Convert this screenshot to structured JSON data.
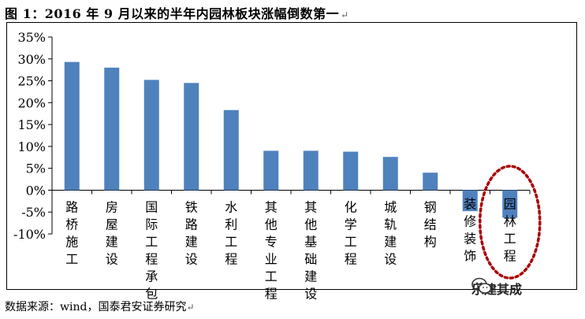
{
  "title": "图 1：2016 年 9 月以来的半年内园林板块涨幅倒数第一",
  "title_mark": "↵",
  "source": "数据来源：wind，国泰君安证券研究",
  "source_mark": "↵",
  "watermark": "乐建其成",
  "watermark_icon": "wechat-icon",
  "chart_data": {
    "type": "bar",
    "categories": [
      "路桥施工",
      "房屋建设",
      "国际工程承包",
      "铁路建设",
      "水利工程",
      "其他专业工程",
      "其他基础建设",
      "化学工程",
      "城轨建设",
      "钢结构",
      "装修装饰",
      "园林工程"
    ],
    "values": [
      29.3,
      28.0,
      25.2,
      24.5,
      18.3,
      9.0,
      9.0,
      8.8,
      7.6,
      4.0,
      -4.8,
      -6.3
    ],
    "ylim": [
      -10,
      35
    ],
    "ytick_step": 5,
    "yticks": [
      "35%",
      "30%",
      "25%",
      "20%",
      "15%",
      "10%",
      "5%",
      "0%",
      "-5%",
      "-10%"
    ],
    "bar_color": "#4F81BD",
    "highlight_index": 11,
    "highlight_color": "#A80000",
    "grid": false,
    "legend": "none"
  }
}
